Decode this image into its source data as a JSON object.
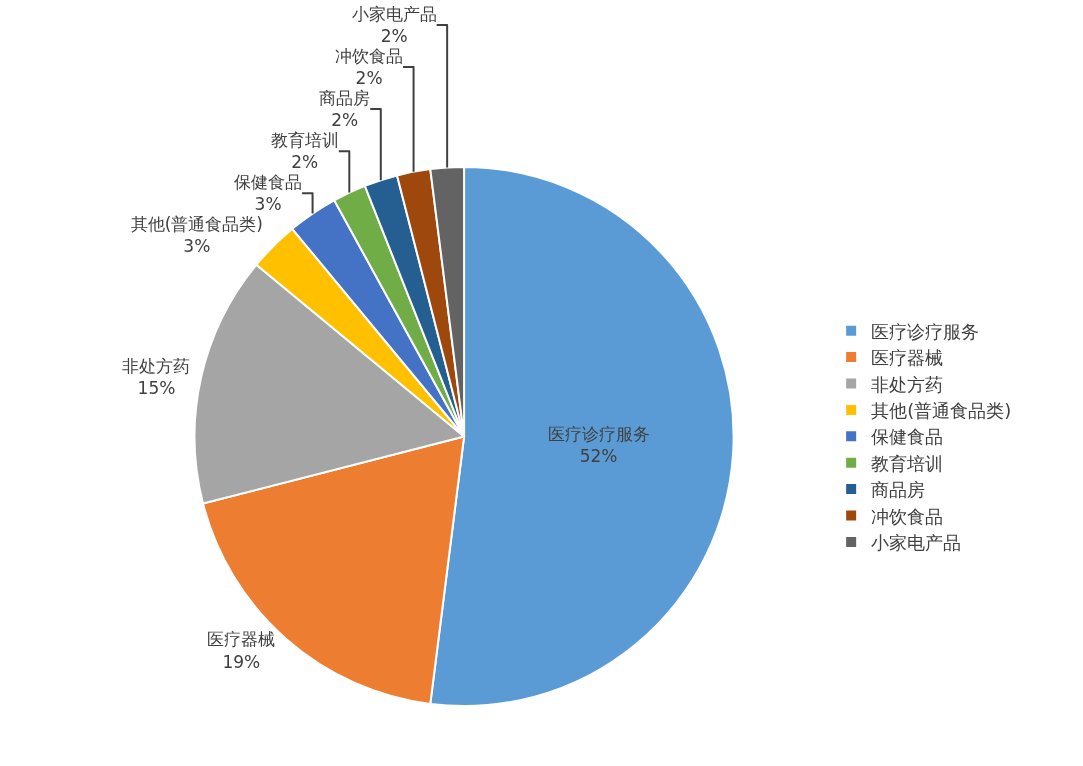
{
  "chart_data": {
    "type": "pie",
    "categories": [
      "医疗诊疗服务",
      "医疗器械",
      "非处方药",
      "其他(普通食品类)",
      "保健食品",
      "教育培训",
      "商品房",
      "冲饮食品",
      "小家电产品"
    ],
    "values": [
      52,
      19,
      15,
      3,
      3,
      2,
      2,
      2,
      2
    ],
    "value_labels": [
      "52%",
      "19%",
      "15%",
      "3%",
      "3%",
      "2%",
      "2%",
      "2%",
      "2%"
    ],
    "colors": [
      "#5b9bd5",
      "#ed7d31",
      "#a5a5a5",
      "#ffc000",
      "#4472c4",
      "#70ad47",
      "#255e91",
      "#9e480e",
      "#636363"
    ],
    "legend": "right"
  }
}
